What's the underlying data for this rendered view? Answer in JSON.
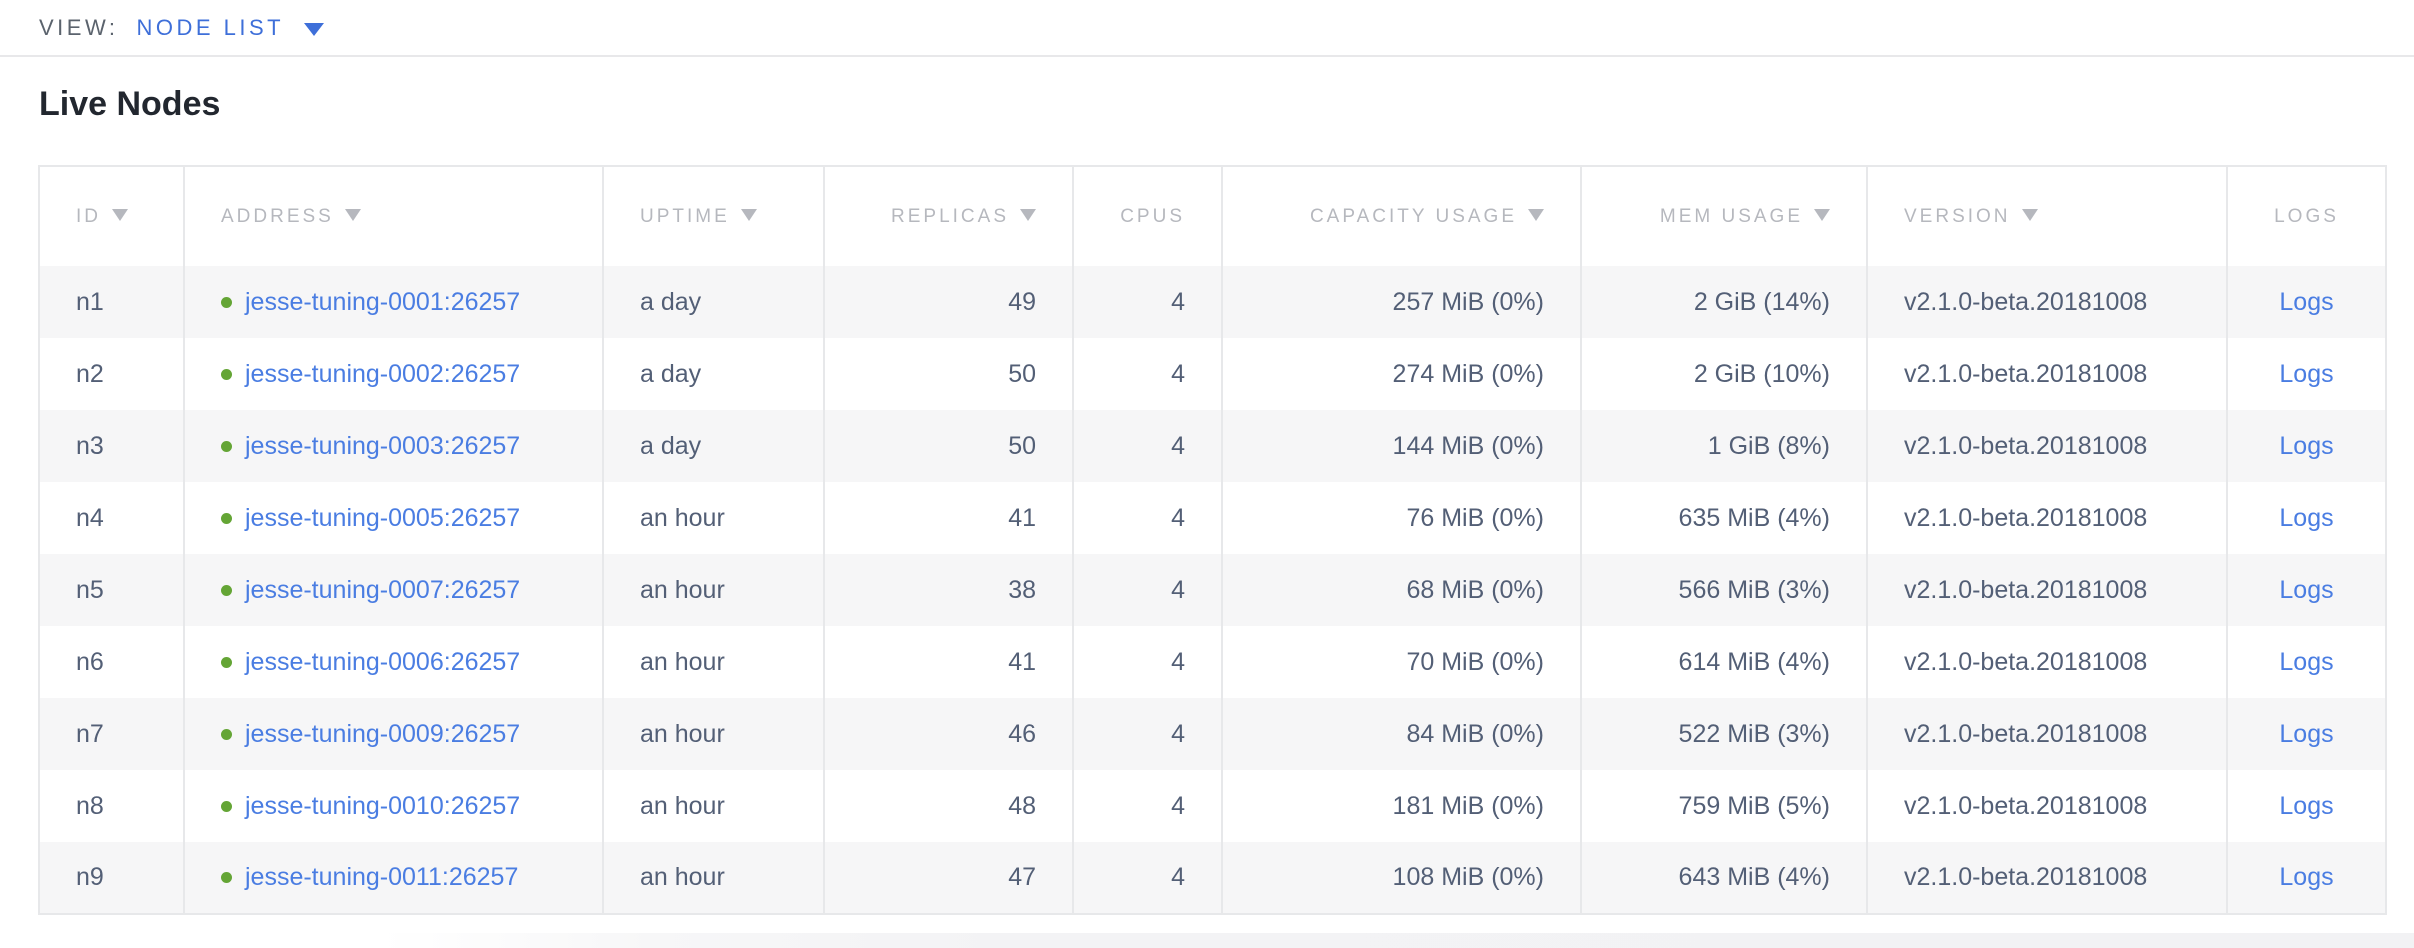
{
  "view_bar": {
    "label": "VIEW:",
    "selected": "NODE LIST"
  },
  "page": {
    "title": "Live Nodes"
  },
  "colors": {
    "link_blue": "#4a7de2",
    "view_accent_blue": "#3e6fd9",
    "healthy_dot_green": "#64a535",
    "header_text_gray": "#b6b8be",
    "body_text_slate": "#535f76",
    "row_alt_background": "#f6f6f7",
    "table_border": "#e7e8ea"
  },
  "table": {
    "columns": [
      {
        "key": "id",
        "label": "ID",
        "sortable": true,
        "align": "left"
      },
      {
        "key": "address",
        "label": "ADDRESS",
        "sortable": true,
        "align": "left"
      },
      {
        "key": "uptime",
        "label": "UPTIME",
        "sortable": true,
        "align": "left"
      },
      {
        "key": "replicas",
        "label": "REPLICAS",
        "sortable": true,
        "align": "right"
      },
      {
        "key": "cpus",
        "label": "CPUS",
        "sortable": false,
        "align": "right"
      },
      {
        "key": "capacity",
        "label": "CAPACITY USAGE",
        "sortable": true,
        "align": "right"
      },
      {
        "key": "mem",
        "label": "MEM USAGE",
        "sortable": true,
        "align": "right"
      },
      {
        "key": "version",
        "label": "VERSION",
        "sortable": true,
        "align": "left"
      },
      {
        "key": "logs",
        "label": "LOGS",
        "sortable": false,
        "align": "center"
      }
    ],
    "rows": [
      {
        "id": "n1",
        "status": "healthy",
        "address": "jesse-tuning-0001:26257",
        "uptime": "a day",
        "replicas": "49",
        "cpus": "4",
        "capacity": "257 MiB (0%)",
        "mem": "2 GiB (14%)",
        "version": "v2.1.0-beta.20181008",
        "logs": "Logs"
      },
      {
        "id": "n2",
        "status": "healthy",
        "address": "jesse-tuning-0002:26257",
        "uptime": "a day",
        "replicas": "50",
        "cpus": "4",
        "capacity": "274 MiB (0%)",
        "mem": "2 GiB (10%)",
        "version": "v2.1.0-beta.20181008",
        "logs": "Logs"
      },
      {
        "id": "n3",
        "status": "healthy",
        "address": "jesse-tuning-0003:26257",
        "uptime": "a day",
        "replicas": "50",
        "cpus": "4",
        "capacity": "144 MiB (0%)",
        "mem": "1 GiB (8%)",
        "version": "v2.1.0-beta.20181008",
        "logs": "Logs"
      },
      {
        "id": "n4",
        "status": "healthy",
        "address": "jesse-tuning-0005:26257",
        "uptime": "an hour",
        "replicas": "41",
        "cpus": "4",
        "capacity": "76 MiB (0%)",
        "mem": "635 MiB (4%)",
        "version": "v2.1.0-beta.20181008",
        "logs": "Logs"
      },
      {
        "id": "n5",
        "status": "healthy",
        "address": "jesse-tuning-0007:26257",
        "uptime": "an hour",
        "replicas": "38",
        "cpus": "4",
        "capacity": "68 MiB (0%)",
        "mem": "566 MiB (3%)",
        "version": "v2.1.0-beta.20181008",
        "logs": "Logs"
      },
      {
        "id": "n6",
        "status": "healthy",
        "address": "jesse-tuning-0006:26257",
        "uptime": "an hour",
        "replicas": "41",
        "cpus": "4",
        "capacity": "70 MiB (0%)",
        "mem": "614 MiB (4%)",
        "version": "v2.1.0-beta.20181008",
        "logs": "Logs"
      },
      {
        "id": "n7",
        "status": "healthy",
        "address": "jesse-tuning-0009:26257",
        "uptime": "an hour",
        "replicas": "46",
        "cpus": "4",
        "capacity": "84 MiB (0%)",
        "mem": "522 MiB (3%)",
        "version": "v2.1.0-beta.20181008",
        "logs": "Logs"
      },
      {
        "id": "n8",
        "status": "healthy",
        "address": "jesse-tuning-0010:26257",
        "uptime": "an hour",
        "replicas": "48",
        "cpus": "4",
        "capacity": "181 MiB (0%)",
        "mem": "759 MiB (5%)",
        "version": "v2.1.0-beta.20181008",
        "logs": "Logs"
      },
      {
        "id": "n9",
        "status": "healthy",
        "address": "jesse-tuning-0011:26257",
        "uptime": "an hour",
        "replicas": "47",
        "cpus": "4",
        "capacity": "108 MiB (0%)",
        "mem": "643 MiB (4%)",
        "version": "v2.1.0-beta.20181008",
        "logs": "Logs"
      }
    ]
  }
}
